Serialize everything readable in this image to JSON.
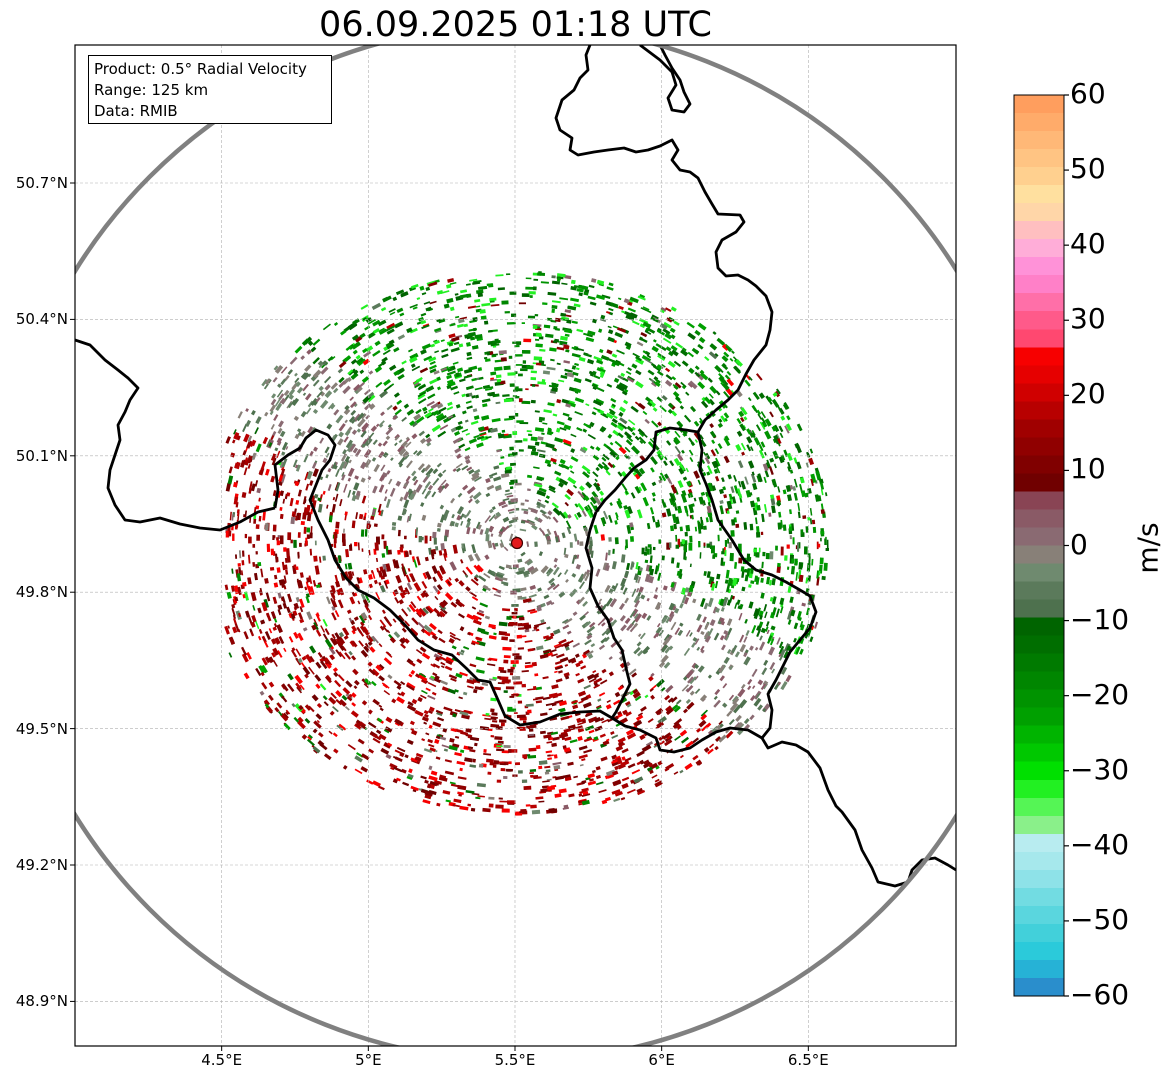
{
  "title": "06.09.2025 01:18 UTC",
  "info_box": {
    "product": "Product: 0.5° Radial Velocity",
    "range": "Range: 125 km",
    "source": "Data: RMIB"
  },
  "map": {
    "lon_range": [
      4.0,
      7.0
    ],
    "lat_range": [
      48.8,
      51.0
    ],
    "radar_site": {
      "lon": 5.505,
      "lat": 49.915
    },
    "range_ring_km": 125,
    "gridlines": true,
    "y_ticks": [
      "50.7°N",
      "50.4°N",
      "50.1°N",
      "49.8°N",
      "49.5°N",
      "49.2°N",
      "48.9°N"
    ],
    "x_ticks": [
      "4.5°E",
      "5°E",
      "5.5°E",
      "6°E",
      "6.5°E"
    ],
    "y_tick_values": [
      50.7,
      50.4,
      50.1,
      49.8,
      49.5,
      49.2,
      48.9
    ],
    "x_tick_values": [
      4.5,
      5.0,
      5.5,
      6.0,
      6.5
    ]
  },
  "colorbar": {
    "label": "m/s",
    "min": -60,
    "max": 60,
    "ticks": [
      "60",
      "50",
      "40",
      "30",
      "20",
      "10",
      "0",
      "−10",
      "−20",
      "−30",
      "−40",
      "−50",
      "−60"
    ],
    "tick_values": [
      60,
      50,
      40,
      30,
      20,
      10,
      0,
      -10,
      -20,
      -30,
      -40,
      -50,
      -60
    ],
    "colors_top_to_bottom": [
      "#ff9e5e",
      "#ffab6a",
      "#ffb877",
      "#ffc483",
      "#ffd08f",
      "#ffe09f",
      "#ffd6a8",
      "#ffbfc0",
      "#ffadd8",
      "#ff92d8",
      "#ff80c8",
      "#ff6fa8",
      "#ff5a8a",
      "#ff4870",
      "#f70000",
      "#e60000",
      "#d00000",
      "#b80000",
      "#a00000",
      "#900000",
      "#800000",
      "#700000",
      "#894454",
      "#8a5a66",
      "#8a6a72",
      "#888078",
      "#6f8a6f",
      "#5b7a5b",
      "#4e714e",
      "#006400",
      "#006e00",
      "#007a00",
      "#008600",
      "#009300",
      "#00a000",
      "#00b400",
      "#00c800",
      "#00e000",
      "#22f022",
      "#55f555",
      "#8af08a",
      "#b8ecf0",
      "#a6e8ec",
      "#8ee2e8",
      "#72dce2",
      "#5ad6de",
      "#42d0da",
      "#2bcada",
      "#26b2d6",
      "#2a8ecc"
    ]
  },
  "echo_colors": {
    "inbound_green": [
      "#007a00",
      "#008600",
      "#006e00",
      "#00a000",
      "#009300",
      "#22f022",
      "#006400"
    ],
    "outbound_red": [
      "#700000",
      "#800000",
      "#900000",
      "#a00000",
      "#b80000",
      "#f70000"
    ],
    "near_zero": [
      "#888078",
      "#8a6a72",
      "#8a5a66",
      "#6f8a6f",
      "#5b7a5b",
      "#4e714e"
    ]
  }
}
